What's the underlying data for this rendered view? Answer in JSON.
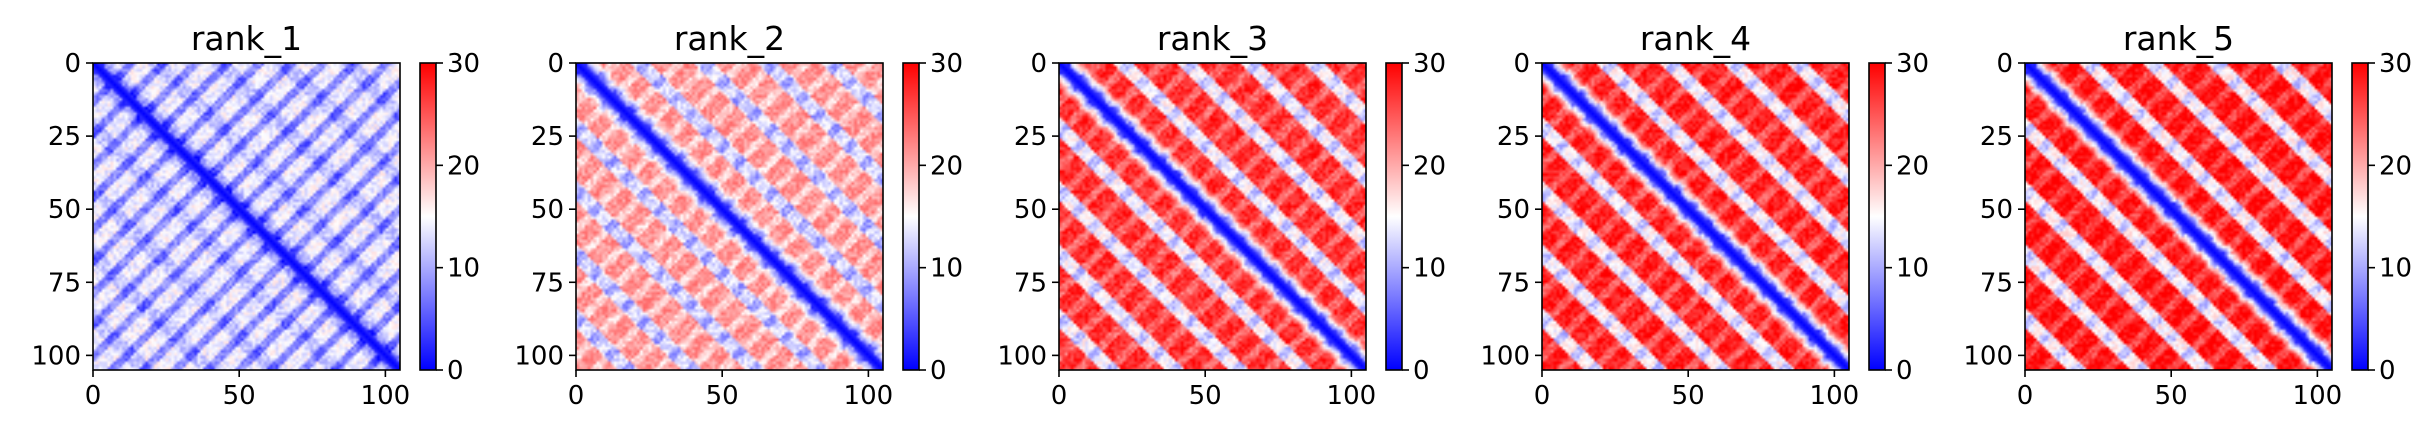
{
  "chart_data": [
    {
      "type": "heatmap",
      "title": "rank_1",
      "x_ticks": [
        "0",
        "50",
        "100"
      ],
      "y_ticks": [
        "0",
        "25",
        "50",
        "75",
        "100"
      ],
      "xlim": [
        0,
        105
      ],
      "ylim": [
        105,
        0
      ],
      "colorbar": {
        "ticks": [
          "0",
          "10",
          "20",
          "30"
        ],
        "range": [
          0,
          30
        ],
        "colormap": "bwr",
        "low": "#0000ff",
        "mid": "#ffffff",
        "high": "#ff0000"
      },
      "grid_size": 106,
      "diagonal_value": 0,
      "background_value": 12,
      "band_period": 22
    },
    {
      "type": "heatmap",
      "title": "rank_2",
      "x_ticks": [
        "0",
        "50",
        "100"
      ],
      "y_ticks": [
        "0",
        "25",
        "50",
        "75",
        "100"
      ],
      "xlim": [
        0,
        105
      ],
      "ylim": [
        105,
        0
      ],
      "colorbar": {
        "ticks": [
          "0",
          "10",
          "20",
          "30"
        ],
        "range": [
          0,
          30
        ],
        "colormap": "bwr",
        "low": "#0000ff",
        "mid": "#ffffff",
        "high": "#ff0000"
      },
      "grid_size": 106,
      "diagonal_value": 0,
      "background_value": 20,
      "band_period": 22
    },
    {
      "type": "heatmap",
      "title": "rank_3",
      "x_ticks": [
        "0",
        "50",
        "100"
      ],
      "y_ticks": [
        "0",
        "25",
        "50",
        "75",
        "100"
      ],
      "xlim": [
        0,
        105
      ],
      "ylim": [
        105,
        0
      ],
      "colorbar": {
        "ticks": [
          "0",
          "10",
          "20",
          "30"
        ],
        "range": [
          0,
          30
        ],
        "colormap": "bwr",
        "low": "#0000ff",
        "mid": "#ffffff",
        "high": "#ff0000"
      },
      "grid_size": 106,
      "diagonal_value": 0,
      "background_value": 26,
      "band_period": 22
    },
    {
      "type": "heatmap",
      "title": "rank_4",
      "x_ticks": [
        "0",
        "50",
        "100"
      ],
      "y_ticks": [
        "0",
        "25",
        "50",
        "75",
        "100"
      ],
      "xlim": [
        0,
        105
      ],
      "ylim": [
        105,
        0
      ],
      "colorbar": {
        "ticks": [
          "0",
          "10",
          "20",
          "30"
        ],
        "range": [
          0,
          30
        ],
        "colormap": "bwr",
        "low": "#0000ff",
        "mid": "#ffffff",
        "high": "#ff0000"
      },
      "grid_size": 106,
      "diagonal_value": 0,
      "background_value": 27,
      "band_period": 22
    },
    {
      "type": "heatmap",
      "title": "rank_5",
      "x_ticks": [
        "0",
        "50",
        "100"
      ],
      "y_ticks": [
        "0",
        "25",
        "50",
        "75",
        "100"
      ],
      "xlim": [
        0,
        105
      ],
      "ylim": [
        105,
        0
      ],
      "colorbar": {
        "ticks": [
          "0",
          "10",
          "20",
          "30"
        ],
        "range": [
          0,
          30
        ],
        "colormap": "bwr",
        "low": "#0000ff",
        "mid": "#ffffff",
        "high": "#ff0000"
      },
      "grid_size": 106,
      "diagonal_value": 0,
      "background_value": 28,
      "band_period": 22
    }
  ]
}
